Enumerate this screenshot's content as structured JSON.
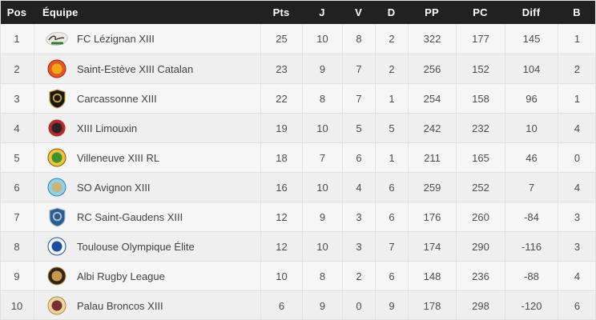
{
  "theme": {
    "header_bg": "#212121",
    "header_text": "#ffffff",
    "row_odd_bg": "#f7f6f6",
    "row_even_bg": "#efefef",
    "divider": "#e0e0e0",
    "body_text": "#4d4d4d"
  },
  "table": {
    "columns": [
      {
        "key": "pos",
        "label": "Pos"
      },
      {
        "key": "team",
        "label": "Équipe"
      },
      {
        "key": "pts",
        "label": "Pts"
      },
      {
        "key": "j",
        "label": "J"
      },
      {
        "key": "v",
        "label": "V"
      },
      {
        "key": "d",
        "label": "D"
      },
      {
        "key": "pp",
        "label": "PP"
      },
      {
        "key": "pc",
        "label": "PC"
      },
      {
        "key": "diff",
        "label": "Diff"
      },
      {
        "key": "b",
        "label": "B"
      }
    ],
    "rows": [
      {
        "pos": 1,
        "team": "FC Lézignan XIII",
        "pts": 25,
        "j": 10,
        "v": 8,
        "d": 2,
        "pp": 322,
        "pc": 177,
        "diff": 145,
        "b": 1,
        "logo": {
          "shape": "oval",
          "primary": "#eeeae2",
          "secondary": "#3b3b3b",
          "accent": "#2e7d32"
        }
      },
      {
        "pos": 2,
        "team": "Saint-Estève XIII Catalan",
        "pts": 23,
        "j": 9,
        "v": 7,
        "d": 2,
        "pp": 256,
        "pc": 152,
        "diff": 104,
        "b": 2,
        "logo": {
          "shape": "circle",
          "primary": "#e2571f",
          "secondary": "#f0a818",
          "accent": "#b71c1c"
        }
      },
      {
        "pos": 3,
        "team": "Carcassonne XIII",
        "pts": 22,
        "j": 8,
        "v": 7,
        "d": 1,
        "pp": 254,
        "pc": 158,
        "diff": 96,
        "b": 1,
        "logo": {
          "shape": "shield",
          "primary": "#171717",
          "secondary": "#c9a227",
          "accent": "#c9a227"
        }
      },
      {
        "pos": 4,
        "team": "XIII Limouxin",
        "pts": 19,
        "j": 10,
        "v": 5,
        "d": 5,
        "pp": 242,
        "pc": 232,
        "diff": 10,
        "b": 4,
        "logo": {
          "shape": "circle",
          "primary": "#b8272b",
          "secondary": "#2b2222",
          "accent": "#e9e4dc"
        }
      },
      {
        "pos": 5,
        "team": "Villeneuve XIII RL",
        "pts": 18,
        "j": 7,
        "v": 6,
        "d": 1,
        "pp": 211,
        "pc": 165,
        "diff": 46,
        "b": 0,
        "logo": {
          "shape": "circle",
          "primary": "#f0c52f",
          "secondary": "#3f8f35",
          "accent": "#7a5b1d"
        }
      },
      {
        "pos": 6,
        "team": "SO Avignon XIII",
        "pts": 16,
        "j": 10,
        "v": 4,
        "d": 6,
        "pp": 259,
        "pc": 252,
        "diff": 7,
        "b": 4,
        "logo": {
          "shape": "circle",
          "primary": "#8fd0ea",
          "secondary": "#cbb277",
          "accent": "#2e86ab"
        }
      },
      {
        "pos": 7,
        "team": "RC Saint-Gaudens XIII",
        "pts": 12,
        "j": 9,
        "v": 3,
        "d": 6,
        "pp": 176,
        "pc": 260,
        "diff": -84,
        "b": 3,
        "logo": {
          "shape": "shield",
          "primary": "#2f5d8a",
          "secondary": "#a9c4dd",
          "accent": "#a9c4dd"
        }
      },
      {
        "pos": 8,
        "team": "Toulouse Olympique Élite",
        "pts": 12,
        "j": 10,
        "v": 3,
        "d": 7,
        "pp": 174,
        "pc": 290,
        "diff": -116,
        "b": 3,
        "logo": {
          "shape": "circle",
          "primary": "#f4f6fa",
          "secondary": "#1d4f9e",
          "accent": "#1d4f9e"
        }
      },
      {
        "pos": 9,
        "team": "Albi Rugby League",
        "pts": 10,
        "j": 8,
        "v": 2,
        "d": 6,
        "pp": 148,
        "pc": 236,
        "diff": -88,
        "b": 4,
        "logo": {
          "shape": "circle",
          "primary": "#33241a",
          "secondary": "#c49a4a",
          "accent": "#c49a4a"
        }
      },
      {
        "pos": 10,
        "team": "Palau Broncos XIII",
        "pts": 6,
        "j": 9,
        "v": 0,
        "d": 9,
        "pp": 178,
        "pc": 298,
        "diff": -120,
        "b": 6,
        "logo": {
          "shape": "circle",
          "primary": "#e8d6a6",
          "secondary": "#7b3030",
          "accent": "#b98c2e"
        }
      }
    ]
  }
}
